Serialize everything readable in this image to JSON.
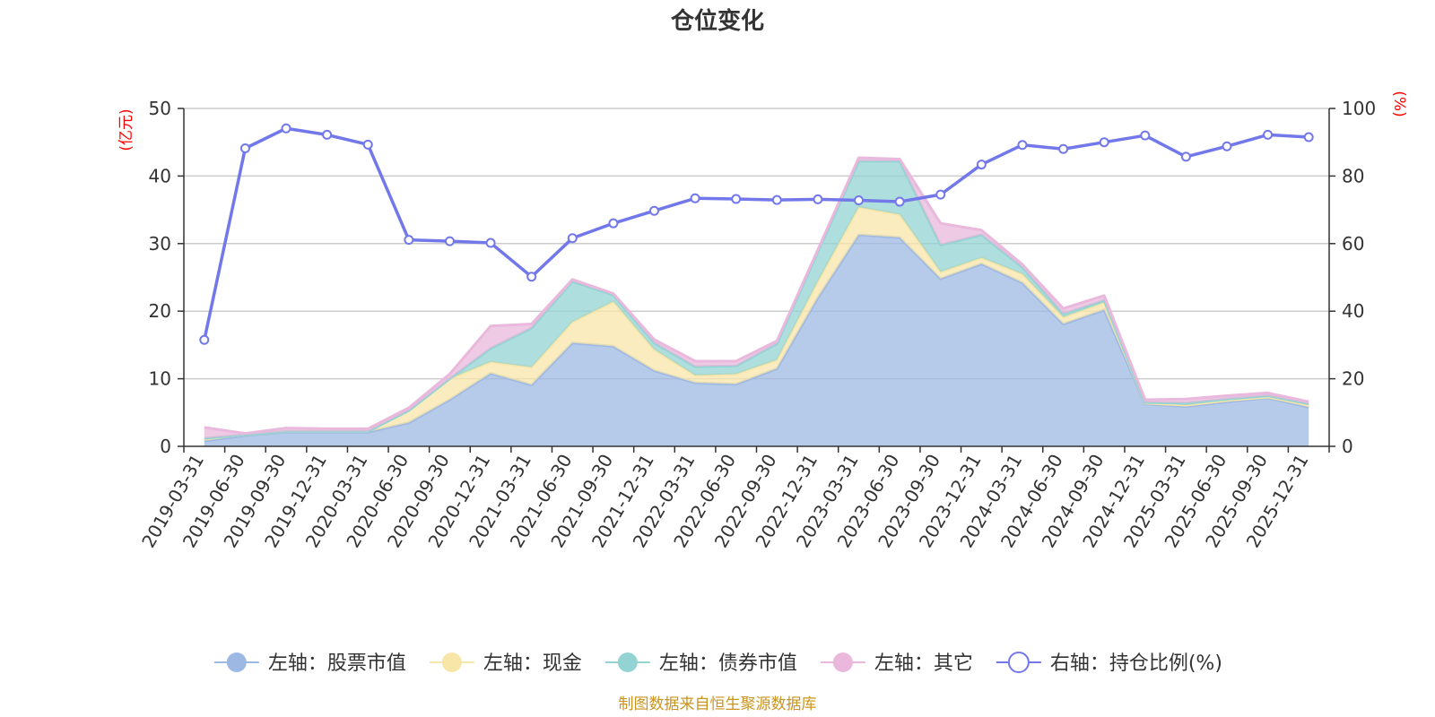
{
  "chart_data": {
    "type": "area",
    "title": "仓位变化",
    "source": "制图数据来自恒生聚源数据库",
    "left_axis": {
      "unit_label": "(亿元)",
      "ylim": [
        0,
        50
      ],
      "ticks": [
        "0",
        "10",
        "20",
        "30",
        "40",
        "50"
      ]
    },
    "right_axis": {
      "unit_label": "(%)",
      "ylim": [
        0,
        100
      ],
      "ticks": [
        "0",
        "20",
        "40",
        "60",
        "80",
        "100"
      ]
    },
    "categories": [
      "2019-03-31",
      "2019-06-30",
      "2019-09-30",
      "2019-12-31",
      "2020-03-31",
      "2020-06-30",
      "2020-09-30",
      "2020-12-31",
      "2021-03-31",
      "2021-06-30",
      "2021-09-30",
      "2021-12-31",
      "2022-03-31",
      "2022-06-30",
      "2022-09-30",
      "2022-12-31",
      "2023-03-31",
      "2023-06-30",
      "2023-09-30",
      "2023-12-31",
      "2024-03-31",
      "2024-06-30",
      "2024-09-30",
      "2024-12-31",
      "2025-03-31",
      "2025-06-30",
      "2025-09-30",
      "2025-12-31"
    ],
    "series": [
      {
        "name": "左轴：股票市值",
        "axis": "left",
        "stack": true,
        "color": "#9db8e3",
        "values": [
          0.8,
          1.6,
          2.1,
          2.1,
          2.1,
          3.5,
          6.9,
          10.8,
          9.1,
          15.3,
          14.8,
          11.2,
          9.4,
          9.2,
          11.5,
          22.0,
          31.3,
          30.9,
          24.8,
          27.0,
          24.2,
          18.1,
          20.2,
          6.3,
          5.9,
          6.6,
          7.2,
          5.8
        ]
      },
      {
        "name": "左轴：现金",
        "axis": "left",
        "stack": true,
        "color": "#f8e5a8",
        "values": [
          0.4,
          0.1,
          0.1,
          0.1,
          0.1,
          1.8,
          3.1,
          1.7,
          2.6,
          3.1,
          6.6,
          3.1,
          1.1,
          1.5,
          1.3,
          2.4,
          4.1,
          3.4,
          1.0,
          0.9,
          1.3,
          1.0,
          1.1,
          0.1,
          0.2,
          0.2,
          0.1,
          0.3
        ]
      },
      {
        "name": "左轴：债券市值",
        "axis": "left",
        "stack": true,
        "color": "#93d3d3",
        "values": [
          0.0,
          0.0,
          0.0,
          0.0,
          0.0,
          0.0,
          0.0,
          2.0,
          5.8,
          6.0,
          1.0,
          1.0,
          1.3,
          1.2,
          2.4,
          4.4,
          6.8,
          7.9,
          4.0,
          3.4,
          1.0,
          0.5,
          0.3,
          0.1,
          0.3,
          0.2,
          0.2,
          0.2
        ]
      },
      {
        "name": "左轴：其它",
        "axis": "left",
        "stack": true,
        "color": "#e9b8dc",
        "values": [
          1.6,
          0.2,
          0.5,
          0.4,
          0.4,
          0.4,
          0.7,
          3.3,
          0.6,
          0.3,
          0.2,
          0.5,
          0.8,
          0.7,
          0.4,
          0.3,
          0.5,
          0.3,
          3.2,
          0.7,
          0.4,
          0.8,
          0.7,
          0.4,
          0.6,
          0.5,
          0.4,
          0.3
        ]
      },
      {
        "name": "右轴：持仓比例(%)",
        "axis": "right",
        "type": "line",
        "color": "#7278e9",
        "values": [
          31.5,
          88.2,
          94.1,
          92.2,
          89.3,
          61.1,
          60.7,
          60.2,
          50.2,
          61.6,
          66.0,
          69.7,
          73.4,
          73.2,
          72.9,
          73.1,
          72.8,
          72.4,
          74.5,
          83.4,
          89.2,
          88.0,
          90.0,
          92.0,
          85.7,
          88.8,
          92.2,
          91.5
        ]
      }
    ]
  },
  "legend": {
    "items": [
      {
        "label": "左轴：股票市值",
        "color": "#9db8e3",
        "marker": "filled-circle"
      },
      {
        "label": "左轴：现金",
        "color": "#f8e5a8",
        "marker": "filled-circle"
      },
      {
        "label": "左轴：债券市值",
        "color": "#93d3d3",
        "marker": "filled-circle"
      },
      {
        "label": "左轴：其它",
        "color": "#e9b8dc",
        "marker": "filled-circle"
      },
      {
        "label": "右轴：持仓比例(%)",
        "color": "#7278e9",
        "marker": "hollow-circle"
      }
    ]
  }
}
